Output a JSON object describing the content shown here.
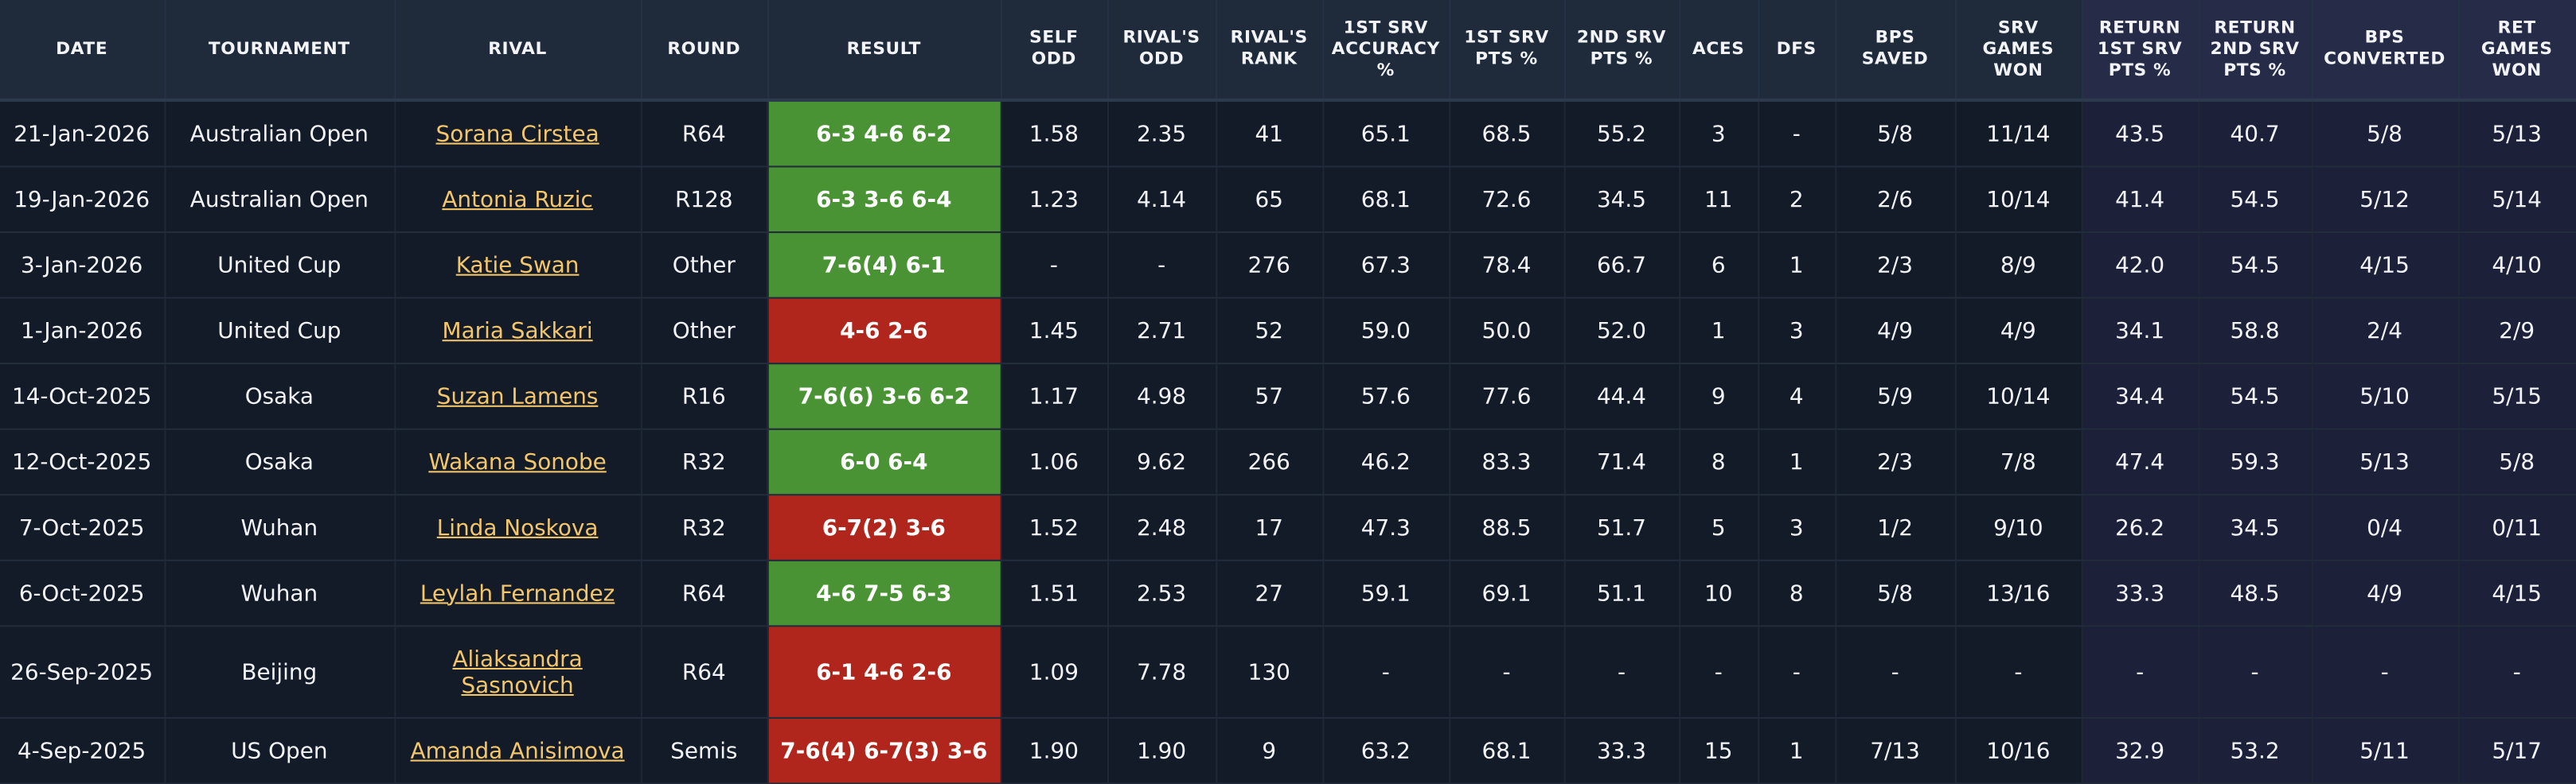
{
  "table": {
    "headers": [
      "DATE",
      "TOURNAMENT",
      "RIVAL",
      "ROUND",
      "RESULT",
      "SELF ODD",
      "RIVAL'S ODD",
      "RIVAL'S RANK",
      "1ST SRV ACCURACY %",
      "1ST SRV PTS %",
      "2ND SRV PTS %",
      "ACES",
      "DFS",
      "BPS SAVED",
      "SRV GAMES WON",
      "RETURN 1ST SRV PTS %",
      "RETURN 2ND SRV PTS %",
      "BPS CONVERTED",
      "RET GAMES WON"
    ],
    "rows": [
      [
        "21-Jan-2026",
        "Australian Open",
        "Sorana Cirstea",
        "R64",
        "6-3 4-6 6-2",
        "1.58",
        "2.35",
        "41",
        "65.1",
        "68.5",
        "55.2",
        "3",
        "-",
        "5/8",
        "11/14",
        "43.5",
        "40.7",
        "5/8",
        "5/13"
      ],
      [
        "19-Jan-2026",
        "Australian Open",
        "Antonia Ruzic",
        "R128",
        "6-3 3-6 6-4",
        "1.23",
        "4.14",
        "65",
        "68.1",
        "72.6",
        "34.5",
        "11",
        "2",
        "2/6",
        "10/14",
        "41.4",
        "54.5",
        "5/12",
        "5/14"
      ],
      [
        "3-Jan-2026",
        "United Cup",
        "Katie Swan",
        "Other",
        "7-6(4) 6-1",
        "-",
        "-",
        "276",
        "67.3",
        "78.4",
        "66.7",
        "6",
        "1",
        "2/3",
        "8/9",
        "42.0",
        "54.5",
        "4/15",
        "4/10"
      ],
      [
        "1-Jan-2026",
        "United Cup",
        "Maria Sakkari",
        "Other",
        "4-6 2-6",
        "1.45",
        "2.71",
        "52",
        "59.0",
        "50.0",
        "52.0",
        "1",
        "3",
        "4/9",
        "4/9",
        "34.1",
        "58.8",
        "2/4",
        "2/9"
      ],
      [
        "14-Oct-2025",
        "Osaka",
        "Suzan Lamens",
        "R16",
        "7-6(6) 3-6 6-2",
        "1.17",
        "4.98",
        "57",
        "57.6",
        "77.6",
        "44.4",
        "9",
        "4",
        "5/9",
        "10/14",
        "34.4",
        "54.5",
        "5/10",
        "5/15"
      ],
      [
        "12-Oct-2025",
        "Osaka",
        "Wakana Sonobe",
        "R32",
        "6-0 6-4",
        "1.06",
        "9.62",
        "266",
        "46.2",
        "83.3",
        "71.4",
        "8",
        "1",
        "2/3",
        "7/8",
        "47.4",
        "59.3",
        "5/13",
        "5/8"
      ],
      [
        "7-Oct-2025",
        "Wuhan",
        "Linda Noskova",
        "R32",
        "6-7(2) 3-6",
        "1.52",
        "2.48",
        "17",
        "47.3",
        "88.5",
        "51.7",
        "5",
        "3",
        "1/2",
        "9/10",
        "26.2",
        "34.5",
        "0/4",
        "0/11"
      ],
      [
        "6-Oct-2025",
        "Wuhan",
        "Leylah Fernandez",
        "R64",
        "4-6 7-5 6-3",
        "1.51",
        "2.53",
        "27",
        "59.1",
        "69.1",
        "51.1",
        "10",
        "8",
        "5/8",
        "13/16",
        "33.3",
        "48.5",
        "4/9",
        "4/15"
      ],
      [
        "26-Sep-2025",
        "Beijing",
        "Aliaksandra Sasnovich",
        "R64",
        "6-1 4-6 2-6",
        "1.09",
        "7.78",
        "130",
        "-",
        "-",
        "-",
        "-",
        "-",
        "-",
        "-",
        "-",
        "-",
        "-",
        "-"
      ],
      [
        "4-Sep-2025",
        "US Open",
        "Amanda Anisimova",
        "Semis",
        "7-6(4) 6-7(3) 3-6",
        "1.90",
        "1.90",
        "9",
        "63.2",
        "68.1",
        "33.3",
        "15",
        "1",
        "7/13",
        "10/16",
        "32.9",
        "53.2",
        "5/11",
        "5/17"
      ]
    ],
    "result_colors": [
      "#4a9334",
      "#4a9334",
      "#4a9334",
      "#b0261c",
      "#4a9334",
      "#4a9334",
      "#b0261c",
      "#4a9334",
      "#b0261c",
      "#b0261c"
    ]
  }
}
